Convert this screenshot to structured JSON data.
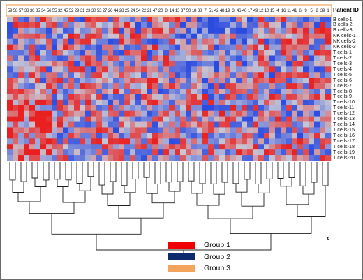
{
  "header": {
    "patient_id_label": "Patient ID"
  },
  "chart_data": {
    "type": "heatmap",
    "title": "",
    "xlabel": "Patient ID",
    "ylabel": "",
    "patient_ids": [
      "59",
      "58",
      "57",
      "33",
      "36",
      "35",
      "34",
      "56",
      "55",
      "32",
      "45",
      "52",
      "29",
      "31",
      "23",
      "30",
      "53",
      "27",
      "26",
      "44",
      "28",
      "25",
      "24",
      "54",
      "22",
      "21",
      "47",
      "20",
      "8",
      "14",
      "13",
      "37",
      "50",
      "18",
      "38",
      "7",
      "51",
      "42",
      "48",
      "19",
      "3",
      "46",
      "40",
      "17",
      "49",
      "12",
      "10",
      "15",
      "4",
      "16",
      "11",
      "41",
      "6",
      "9",
      "5",
      "2",
      "39",
      "1"
    ],
    "row_labels": [
      "B cells-1",
      "B cells-2",
      "B cells-3",
      "NK cells-1",
      "NK cells-2",
      "NK cells-3",
      "T cells-1",
      "T cells-2",
      "T cells-3",
      "T cells-4",
      "T cells-5",
      "T cells-6",
      "T cells-7",
      "T cells-8",
      "T cells-9",
      "T cells-10",
      "T cells-11",
      "T cells-12",
      "T cells-13",
      "T cells-14",
      "T cells-15",
      "T cells-16",
      "T cells-17",
      "T cells-18",
      "T cells-19",
      "T cells-20"
    ],
    "color_scale": {
      "low": "#2b4ae0",
      "mid": "#c9c9d6",
      "high": "#e82020"
    },
    "dendrogram": "hierarchical clustering of patients"
  },
  "legend": {
    "items": [
      {
        "label": "Group 1",
        "color": "#f00000"
      },
      {
        "label": "Group 2",
        "color": "#0d2a6e"
      },
      {
        "label": "Group 3",
        "color": "#f4a45c"
      }
    ]
  },
  "group_colors": {
    "highlight_box": "#f4a45c"
  },
  "icons": {
    "back": "chevron-left-icon"
  },
  "glyphs": {
    "back": "‹"
  }
}
